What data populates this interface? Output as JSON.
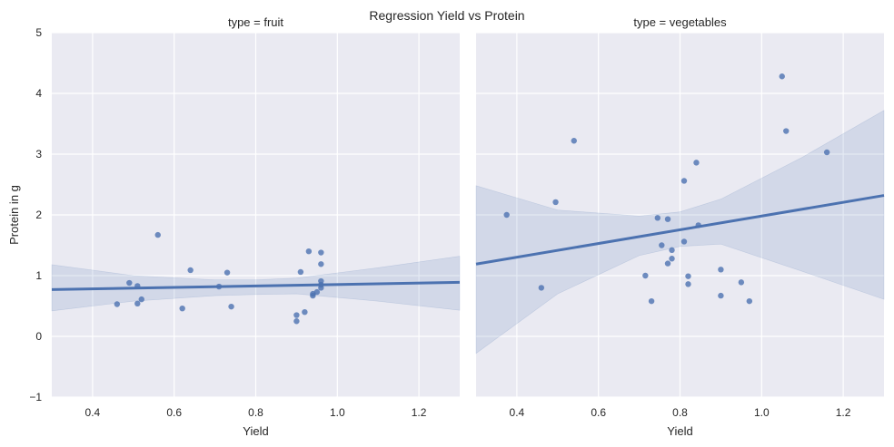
{
  "chart_data": {
    "type": "scatter",
    "title": "Regression Yield vs Protein",
    "ylabel": "Protein in g",
    "xlim": [
      0.3,
      1.3
    ],
    "ylim": [
      -1,
      5
    ],
    "x_ticks": [
      0.4,
      0.6,
      0.8,
      1.0,
      1.2
    ],
    "x_tick_labels": [
      "0.4",
      "0.6",
      "0.8",
      "1.0",
      "1.2"
    ],
    "y_ticks": [
      -1,
      0,
      1,
      2,
      3,
      4,
      5
    ],
    "y_tick_labels": [
      "−1",
      "0",
      "1",
      "2",
      "3",
      "4",
      "5"
    ],
    "grid": true,
    "colors": {
      "series": "#4c72b0",
      "panel_background": "#eaeaf2",
      "grid": "#ffffff"
    },
    "panels": [
      {
        "facet_title": "type = fruit",
        "xlabel": "Yield",
        "points": [
          {
            "x": 0.46,
            "y": 0.53
          },
          {
            "x": 0.49,
            "y": 0.88
          },
          {
            "x": 0.51,
            "y": 0.83
          },
          {
            "x": 0.51,
            "y": 0.54
          },
          {
            "x": 0.52,
            "y": 0.61
          },
          {
            "x": 0.56,
            "y": 1.67
          },
          {
            "x": 0.62,
            "y": 0.46
          },
          {
            "x": 0.64,
            "y": 1.09
          },
          {
            "x": 0.71,
            "y": 0.82
          },
          {
            "x": 0.73,
            "y": 1.05
          },
          {
            "x": 0.74,
            "y": 0.49
          },
          {
            "x": 0.9,
            "y": 0.35
          },
          {
            "x": 0.9,
            "y": 0.25
          },
          {
            "x": 0.91,
            "y": 1.06
          },
          {
            "x": 0.92,
            "y": 0.4
          },
          {
            "x": 0.93,
            "y": 1.4
          },
          {
            "x": 0.94,
            "y": 0.7
          },
          {
            "x": 0.94,
            "y": 0.67
          },
          {
            "x": 0.95,
            "y": 0.73
          },
          {
            "x": 0.96,
            "y": 1.38
          },
          {
            "x": 0.96,
            "y": 1.19
          },
          {
            "x": 0.96,
            "y": 0.91
          },
          {
            "x": 0.96,
            "y": 0.85
          },
          {
            "x": 0.96,
            "y": 0.8
          }
        ],
        "fit": {
          "x": [
            0.3,
            1.3
          ],
          "y": [
            0.77,
            0.89
          ]
        },
        "ci_band": [
          {
            "x": 0.3,
            "lo": 0.42,
            "hi": 1.18
          },
          {
            "x": 0.5,
            "lo": 0.58,
            "hi": 1.0
          },
          {
            "x": 0.7,
            "lo": 0.67,
            "hi": 0.93
          },
          {
            "x": 0.8,
            "lo": 0.69,
            "hi": 0.93
          },
          {
            "x": 0.9,
            "lo": 0.7,
            "hi": 0.96
          },
          {
            "x": 1.1,
            "lo": 0.58,
            "hi": 1.13
          },
          {
            "x": 1.3,
            "lo": 0.43,
            "hi": 1.32
          }
        ]
      },
      {
        "facet_title": "type = vegetables",
        "xlabel": "Yield",
        "points": [
          {
            "x": 0.375,
            "y": 2.0
          },
          {
            "x": 0.46,
            "y": 0.8
          },
          {
            "x": 0.495,
            "y": 2.21
          },
          {
            "x": 0.54,
            "y": 3.22
          },
          {
            "x": 0.715,
            "y": 1.0
          },
          {
            "x": 0.73,
            "y": 0.58
          },
          {
            "x": 0.745,
            "y": 1.95
          },
          {
            "x": 0.755,
            "y": 1.5
          },
          {
            "x": 0.77,
            "y": 1.93
          },
          {
            "x": 0.77,
            "y": 1.2
          },
          {
            "x": 0.78,
            "y": 1.42
          },
          {
            "x": 0.78,
            "y": 1.28
          },
          {
            "x": 0.81,
            "y": 2.56
          },
          {
            "x": 0.81,
            "y": 1.56
          },
          {
            "x": 0.82,
            "y": 0.99
          },
          {
            "x": 0.82,
            "y": 0.86
          },
          {
            "x": 0.84,
            "y": 2.86
          },
          {
            "x": 0.845,
            "y": 1.83
          },
          {
            "x": 0.9,
            "y": 1.1
          },
          {
            "x": 0.9,
            "y": 0.67
          },
          {
            "x": 0.95,
            "y": 0.89
          },
          {
            "x": 0.97,
            "y": 0.58
          },
          {
            "x": 1.05,
            "y": 4.28
          },
          {
            "x": 1.06,
            "y": 3.38
          },
          {
            "x": 1.16,
            "y": 3.03
          }
        ],
        "fit": {
          "x": [
            0.3,
            1.3
          ],
          "y": [
            1.19,
            2.32
          ]
        },
        "ci_band": [
          {
            "x": 0.3,
            "lo": -0.28,
            "hi": 2.48
          },
          {
            "x": 0.5,
            "lo": 0.7,
            "hi": 2.08
          },
          {
            "x": 0.7,
            "lo": 1.33,
            "hi": 1.98
          },
          {
            "x": 0.8,
            "lo": 1.48,
            "hi": 2.05
          },
          {
            "x": 0.9,
            "lo": 1.52,
            "hi": 2.26
          },
          {
            "x": 1.1,
            "lo": 1.07,
            "hi": 2.95
          },
          {
            "x": 1.3,
            "lo": 0.61,
            "hi": 3.72
          }
        ]
      }
    ]
  }
}
